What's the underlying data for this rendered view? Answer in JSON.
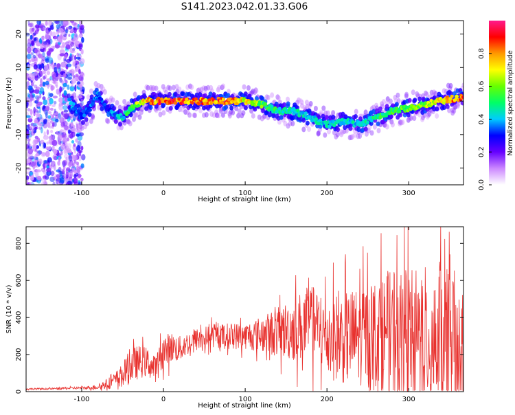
{
  "figure_title": "S141.2023.042.01.33.G06",
  "chart_data": [
    {
      "type": "heatmap",
      "xlabel": "Height of straight line (km)",
      "ylabel": "Frequency (Hz)",
      "xlim": [
        -168,
        367
      ],
      "ylim": [
        -25,
        24
      ],
      "xticks": [
        -100,
        0,
        100,
        200,
        300
      ],
      "yticks": [
        -20,
        -10,
        0,
        10,
        20
      ],
      "colorbar": {
        "label": "Normalized spectral amplitude",
        "range": [
          0.0,
          1.0
        ],
        "ticks": [
          0.0,
          0.2,
          0.4,
          0.6,
          0.8
        ],
        "tick_labels": [
          "0.0",
          "0.2",
          "0.4",
          "0.6",
          "0.8"
        ],
        "colormap": [
          "#ffffff",
          "#cc88ff",
          "#6600ff",
          "#0000ff",
          "#00ccff",
          "#00ff66",
          "#66ff00",
          "#ffff00",
          "#ff9900",
          "#ff0000",
          "#ff1a8c"
        ]
      },
      "ridge": {
        "x": [
          -115,
          -100,
          -90,
          -80,
          -70,
          -60,
          -50,
          -40,
          -20,
          0,
          20,
          40,
          60,
          80,
          100,
          120,
          140,
          160,
          180,
          200,
          220,
          240,
          260,
          280,
          300,
          320,
          340,
          360
        ],
        "frequency": [
          0,
          -5,
          -2,
          2,
          -2,
          -4,
          -5,
          -2,
          0,
          0,
          0,
          0,
          0,
          0,
          0,
          -1,
          -3,
          -3,
          -5,
          -7,
          -6,
          -7,
          -5,
          -3,
          -2,
          -1,
          0,
          1
        ],
        "amplitude": [
          0.4,
          0.35,
          0.35,
          0.4,
          0.3,
          0.4,
          0.45,
          0.55,
          0.8,
          0.9,
          0.9,
          0.85,
          0.85,
          0.85,
          0.75,
          0.6,
          0.5,
          0.45,
          0.45,
          0.45,
          0.45,
          0.45,
          0.5,
          0.55,
          0.6,
          0.65,
          0.8,
          0.85
        ]
      },
      "noise_band": {
        "x_range": [
          -168,
          -98
        ],
        "frequency_range": [
          -25,
          24
        ]
      }
    },
    {
      "type": "line",
      "xlabel": "Height of straight line (km)",
      "ylabel": "SNR (10 * v/v)",
      "xlim": [
        -168,
        367
      ],
      "ylim": [
        0,
        890
      ],
      "xticks": [
        -100,
        0,
        100,
        200,
        300
      ],
      "yticks": [
        0,
        200,
        400,
        600,
        800
      ],
      "series": [
        {
          "color": "#e8312e",
          "x": [
            -168,
            -140,
            -120,
            -100,
            -80,
            -70,
            -60,
            -50,
            -40,
            -30,
            -20,
            -10,
            0,
            10,
            20,
            30,
            40,
            60,
            80,
            100,
            120,
            140,
            160,
            180,
            200,
            220,
            240,
            260,
            280,
            300,
            320,
            340,
            360,
            367
          ],
          "y": [
            15,
            15,
            18,
            20,
            25,
            40,
            60,
            90,
            140,
            160,
            160,
            120,
            220,
            240,
            230,
            260,
            280,
            300,
            300,
            300,
            310,
            320,
            340,
            370,
            300,
            290,
            300,
            310,
            310,
            300,
            300,
            290,
            270,
            260
          ],
          "spread": [
            5,
            5,
            8,
            8,
            15,
            30,
            45,
            70,
            110,
            100,
            90,
            80,
            100,
            90,
            80,
            70,
            70,
            70,
            80,
            80,
            110,
            150,
            200,
            230,
            250,
            280,
            300,
            340,
            380,
            400,
            420,
            440,
            420,
            400
          ]
        }
      ]
    }
  ]
}
